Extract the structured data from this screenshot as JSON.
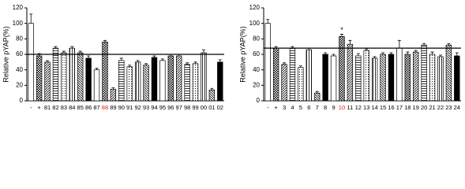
{
  "chart_data": [
    {
      "type": "bar",
      "y_label": "Relative pYAP(%)",
      "categories": [
        "-",
        "+",
        "81",
        "82",
        "83",
        "84",
        "85",
        "86",
        "87",
        "88",
        "89",
        "90",
        "91",
        "92",
        "93",
        "94",
        "95",
        "96",
        "97",
        "98",
        "99",
        "00",
        "01",
        "02"
      ],
      "values": [
        100,
        58,
        50,
        68,
        62,
        68,
        62,
        55,
        40,
        76,
        15,
        52,
        44,
        50,
        46,
        56,
        52,
        58,
        58,
        47,
        48,
        62,
        14,
        50
      ],
      "errors": [
        12,
        3,
        2,
        2,
        2,
        2,
        2,
        3,
        2,
        2,
        2,
        3,
        2,
        2,
        2,
        2,
        2,
        2,
        2,
        2,
        2,
        4,
        2,
        3
      ],
      "ylim": [
        0,
        120
      ],
      "yticks": [
        0,
        20,
        40,
        60,
        80,
        100,
        120
      ],
      "ref_line": 60,
      "highlight": {
        "category_index": 9,
        "color": "#e02020"
      }
    },
    {
      "type": "bar",
      "y_label": "Relative pYAP(%)",
      "categories": [
        "-",
        "+",
        "3",
        "4",
        "5",
        "6",
        "7",
        "8",
        "9",
        "10",
        "11",
        "12",
        "13",
        "14",
        "15",
        "16",
        "17",
        "18",
        "19",
        "20",
        "21",
        "22",
        "23",
        "24"
      ],
      "values": [
        100,
        68,
        47,
        68,
        43,
        66,
        10,
        60,
        58,
        83,
        73,
        58,
        65,
        55,
        60,
        60,
        68,
        60,
        63,
        72,
        60,
        57,
        72,
        58
      ],
      "errors": [
        5,
        2,
        2,
        2,
        2,
        2,
        2,
        2,
        2,
        3,
        5,
        3,
        2,
        2,
        2,
        2,
        10,
        3,
        2,
        2,
        3,
        2,
        2,
        4
      ],
      "ylim": [
        0,
        120
      ],
      "yticks": [
        0,
        20,
        40,
        60,
        80,
        100,
        120
      ],
      "ref_line": 68,
      "highlight": {
        "category_index": 9,
        "color": "#e02020"
      },
      "annotations": [
        {
          "text": "*",
          "category_index": 9
        }
      ]
    }
  ]
}
